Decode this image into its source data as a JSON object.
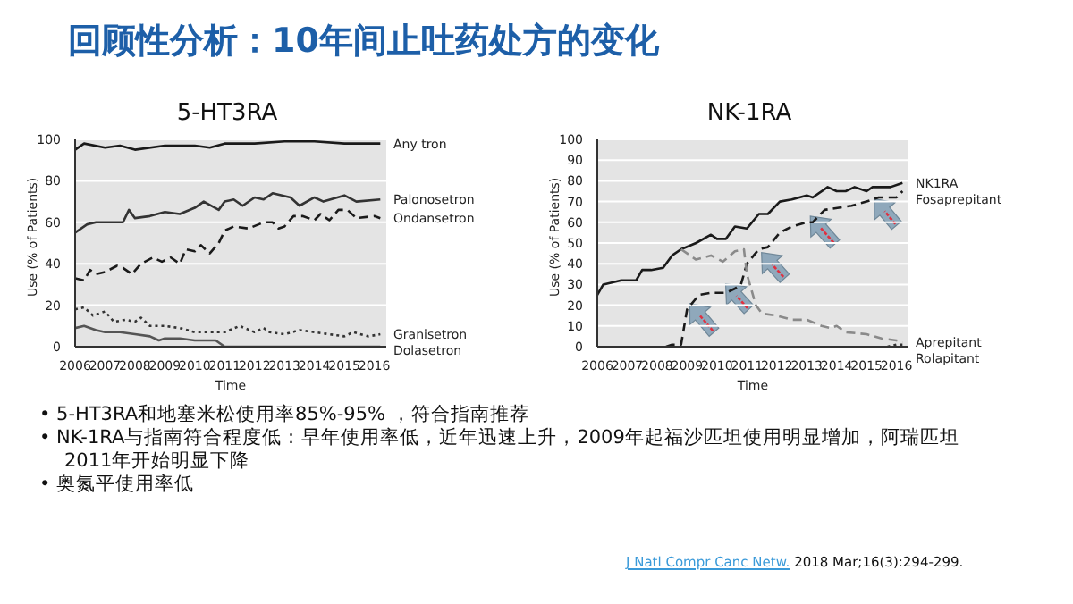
{
  "chart_data": [
    {
      "type": "line",
      "title": "5-HT3RA",
      "xlabel": "Time",
      "ylabel": "Use (% of Patients)",
      "annotations": [
        "回顾性分析：10年间止吐药处方的变化",
        "• 5-HT3RA和地塞米松使用率85%-95% ，符合指南推荐",
        "• NK-1RA与指南符合程度低：早年使用率低，近年迅速上升，2009年起福沙匹坦使用明显增加，阿瑞匹坦2011年开始明显下降",
        "• 奥氮平使用率低"
      ],
      "xlim": [
        2006,
        2016.4
      ],
      "xticks": [
        2006,
        2007,
        2008,
        2009,
        2010,
        2011,
        2012,
        2013,
        2014,
        2015,
        2016
      ],
      "ylim": [
        0,
        100
      ],
      "yticks": [
        0,
        20,
        40,
        60,
        80,
        100
      ],
      "grid": "y",
      "marker": "none",
      "series": [
        {
          "name": "Any tron",
          "color": "#1a1a1a",
          "line_style": "solid",
          "x": [
            2006,
            2006.3,
            2007,
            2007.5,
            2008,
            2009,
            2010,
            2010.5,
            2011,
            2012,
            2013,
            2014,
            2015,
            2016.2
          ],
          "values": [
            95,
            98,
            96,
            97,
            95,
            97,
            97,
            96,
            98,
            98,
            99,
            99,
            98,
            98
          ]
        },
        {
          "name": "Palonosetron",
          "color": "#333333",
          "line_style": "solid",
          "x": [
            2006,
            2006.4,
            2006.7,
            2007.6,
            2007.8,
            2008,
            2008.5,
            2009,
            2009.5,
            2010,
            2010.3,
            2010.8,
            2011,
            2011.3,
            2011.6,
            2012,
            2012.3,
            2012.6,
            2013.2,
            2013.5,
            2014,
            2014.3,
            2015,
            2015.4,
            2016.2
          ],
          "values": [
            55,
            59,
            60,
            60,
            66,
            62,
            63,
            65,
            64,
            67,
            70,
            66,
            70,
            71,
            68,
            72,
            71,
            74,
            72,
            68,
            72,
            70,
            73,
            70,
            71
          ]
        },
        {
          "name": "Ondansetron",
          "color": "#1a1a1a",
          "line_style": "dashed",
          "x": [
            2006,
            2006.3,
            2006.5,
            2006.7,
            2007,
            2007.4,
            2007.6,
            2007.9,
            2008.2,
            2008.6,
            2008.9,
            2009.2,
            2009.5,
            2009.7,
            2010,
            2010.2,
            2010.5,
            2010.8,
            2011,
            2011.3,
            2011.8,
            2012.3,
            2012.6,
            2012.8,
            2013,
            2013.3,
            2013.6,
            2014,
            2014.2,
            2014.5,
            2014.8,
            2015.1,
            2015.4,
            2016,
            2016.2
          ],
          "values": [
            33,
            32,
            37,
            35,
            36,
            39,
            38,
            35,
            40,
            43,
            41,
            43,
            40,
            47,
            46,
            49,
            45,
            50,
            56,
            58,
            57,
            60,
            60,
            57,
            58,
            63,
            63,
            61,
            64,
            61,
            66,
            66,
            62,
            63,
            62
          ]
        },
        {
          "name": "Granisetron",
          "color": "#333333",
          "line_style": "dotted",
          "x": [
            2006,
            2006.3,
            2006.6,
            2007,
            2007.3,
            2007.7,
            2008,
            2008.2,
            2008.5,
            2009,
            2009.5,
            2010,
            2010.5,
            2011,
            2011.5,
            2012,
            2012.3,
            2012.5,
            2013,
            2013.5,
            2014,
            2015,
            2015.3,
            2015.8,
            2016.2
          ],
          "values": [
            18,
            19,
            15,
            17,
            12,
            13,
            12,
            14,
            10,
            10,
            9,
            7,
            7,
            7,
            10,
            7,
            9,
            7,
            6,
            8,
            7,
            5,
            7,
            5,
            6
          ]
        },
        {
          "name": "Dolasetron",
          "color": "#555555",
          "line_style": "solid",
          "x": [
            2006,
            2006.3,
            2006.7,
            2007,
            2007.5,
            2008,
            2008.5,
            2008.8,
            2009,
            2009.5,
            2010,
            2010.7,
            2011,
            2016.2
          ],
          "values": [
            9,
            10,
            8,
            7,
            7,
            6,
            5,
            3,
            4,
            4,
            3,
            3,
            0,
            0
          ]
        }
      ]
    },
    {
      "type": "line",
      "title": "NK-1RA",
      "xlabel": "Time",
      "ylabel": "Use (% of Patients)",
      "annotations": [
        "J Natl Compr Canc Netw.",
        "2018 Mar;16(3):294-299."
      ],
      "xlim": [
        2006,
        2016.4
      ],
      "xticks": [
        2006,
        2007,
        2008,
        2009,
        2010,
        2011,
        2012,
        2013,
        2014,
        2015,
        2016
      ],
      "ylim": [
        0,
        100
      ],
      "yticks": [
        0,
        10,
        20,
        30,
        40,
        50,
        60,
        70,
        80,
        90,
        100
      ],
      "grid": "y",
      "marker": "none",
      "series": [
        {
          "name": "NK1RA",
          "color": "#1a1a1a",
          "line_style": "solid",
          "x": [
            2006,
            2006.2,
            2006.8,
            2007.3,
            2007.5,
            2007.8,
            2008.2,
            2008.5,
            2008.8,
            2009.3,
            2009.8,
            2010,
            2010.3,
            2010.6,
            2011,
            2011.4,
            2011.7,
            2012.1,
            2012.5,
            2013,
            2013.2,
            2013.7,
            2014,
            2014.3,
            2014.6,
            2015,
            2015.2,
            2015.8,
            2016.2
          ],
          "values": [
            25,
            30,
            32,
            32,
            37,
            37,
            38,
            44,
            47,
            50,
            54,
            52,
            52,
            58,
            57,
            64,
            64,
            70,
            71,
            73,
            72,
            77,
            75,
            75,
            77,
            75,
            77,
            77,
            79
          ]
        },
        {
          "name": "Fosaprepitant",
          "color": "#1a1a1a",
          "line_style": "dashed",
          "x": [
            2008.3,
            2008.5,
            2008.8,
            2009,
            2009.4,
            2009.8,
            2010.3,
            2010.6,
            2010.8,
            2011,
            2011.4,
            2011.7,
            2012.1,
            2012.5,
            2013,
            2013.2,
            2013.6,
            2014.5,
            2015,
            2015.4,
            2016,
            2016.2
          ],
          "values": [
            0,
            1,
            1,
            18,
            25,
            26,
            26,
            28,
            30,
            40,
            47,
            48,
            55,
            58,
            60,
            60,
            66,
            68,
            70,
            72,
            72,
            75
          ]
        },
        {
          "name": "Aprepitant",
          "color": "#8a8a8a",
          "line_style": "dashed",
          "x": [
            2008.8,
            2009.3,
            2009.8,
            2010.2,
            2010.6,
            2010.9,
            2011,
            2011.3,
            2011.5,
            2012,
            2012.5,
            2013,
            2013.5,
            2013.8,
            2014,
            2014.3,
            2015,
            2015.5,
            2016,
            2016.2
          ],
          "values": [
            47,
            42,
            44,
            41,
            46,
            47,
            35,
            20,
            16,
            15,
            13,
            13,
            10,
            9,
            10,
            7,
            6,
            4,
            3,
            2
          ]
        },
        {
          "name": "Rolapitant",
          "color": "#333333",
          "line_style": "dotted",
          "x": [
            2015.7,
            2016,
            2016.2
          ],
          "values": [
            0,
            1,
            1
          ]
        }
      ]
    }
  ]
}
